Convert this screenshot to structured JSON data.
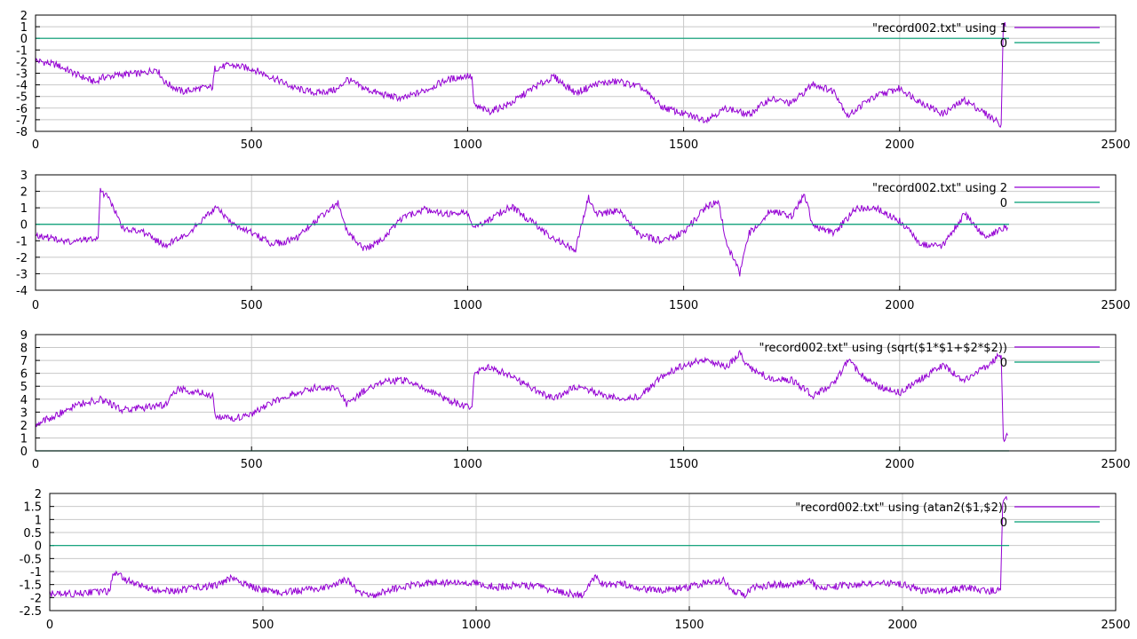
{
  "colors": {
    "data_series": "#9400d3",
    "zero_line": "#009e73",
    "grid": "#c8c8c8",
    "axis": "#000000",
    "background": "#ffffff"
  },
  "chart_data": [
    {
      "type": "line",
      "xlim": [
        0,
        2500
      ],
      "ylim": [
        -8,
        2
      ],
      "x_ticks": [
        0,
        500,
        1000,
        1500,
        2000,
        2500
      ],
      "y_ticks": [
        -8,
        -7,
        -6,
        -5,
        -4,
        -3,
        -2,
        -1,
        0,
        1,
        2
      ],
      "grid": true,
      "legend_position": "top-right",
      "series": [
        {
          "name": "\"record002.txt\" using 1",
          "kind": "data",
          "points": [
            [
              0,
              -1.9
            ],
            [
              50,
              -2.3
            ],
            [
              100,
              -3.2
            ],
            [
              140,
              -3.8
            ],
            [
              150,
              -3.4
            ],
            [
              200,
              -3.1
            ],
            [
              250,
              -3.0
            ],
            [
              280,
              -2.6
            ],
            [
              300,
              -3.8
            ],
            [
              340,
              -4.6
            ],
            [
              380,
              -4.3
            ],
            [
              410,
              -4.2
            ],
            [
              415,
              -2.6
            ],
            [
              450,
              -2.3
            ],
            [
              500,
              -2.6
            ],
            [
              550,
              -3.4
            ],
            [
              600,
              -4.3
            ],
            [
              650,
              -4.7
            ],
            [
              700,
              -4.4
            ],
            [
              720,
              -3.5
            ],
            [
              760,
              -4.3
            ],
            [
              800,
              -4.8
            ],
            [
              850,
              -5.2
            ],
            [
              900,
              -4.5
            ],
            [
              950,
              -3.6
            ],
            [
              1000,
              -3.2
            ],
            [
              1010,
              -3.4
            ],
            [
              1015,
              -5.8
            ],
            [
              1050,
              -6.3
            ],
            [
              1100,
              -5.6
            ],
            [
              1150,
              -4.3
            ],
            [
              1200,
              -3.3
            ],
            [
              1250,
              -4.7
            ],
            [
              1300,
              -3.9
            ],
            [
              1350,
              -3.7
            ],
            [
              1400,
              -4.2
            ],
            [
              1450,
              -5.9
            ],
            [
              1500,
              -6.5
            ],
            [
              1550,
              -7.0
            ],
            [
              1600,
              -6.0
            ],
            [
              1650,
              -6.6
            ],
            [
              1700,
              -5.2
            ],
            [
              1750,
              -5.6
            ],
            [
              1800,
              -3.9
            ],
            [
              1850,
              -4.6
            ],
            [
              1880,
              -6.7
            ],
            [
              1920,
              -5.5
            ],
            [
              1950,
              -4.9
            ],
            [
              2000,
              -4.3
            ],
            [
              2050,
              -5.5
            ],
            [
              2100,
              -6.5
            ],
            [
              2150,
              -5.3
            ],
            [
              2200,
              -6.5
            ],
            [
              2235,
              -7.4
            ],
            [
              2240,
              1.5
            ],
            [
              2245,
              1.0
            ]
          ]
        },
        {
          "name": "0",
          "kind": "constant",
          "value": 0
        }
      ]
    },
    {
      "type": "line",
      "xlim": [
        0,
        2500
      ],
      "ylim": [
        -4,
        3
      ],
      "x_ticks": [
        0,
        500,
        1000,
        1500,
        2000,
        2500
      ],
      "y_ticks": [
        -4,
        -3,
        -2,
        -1,
        0,
        1,
        2,
        3
      ],
      "grid": true,
      "legend_position": "top-right",
      "series": [
        {
          "name": "\"record002.txt\" using 2",
          "kind": "data",
          "points": [
            [
              0,
              -0.6
            ],
            [
              40,
              -0.9
            ],
            [
              80,
              -1.1
            ],
            [
              120,
              -0.9
            ],
            [
              145,
              -0.8
            ],
            [
              150,
              2.0
            ],
            [
              170,
              1.6
            ],
            [
              200,
              -0.2
            ],
            [
              250,
              -0.5
            ],
            [
              300,
              -1.3
            ],
            [
              350,
              -0.6
            ],
            [
              400,
              0.6
            ],
            [
              420,
              1.0
            ],
            [
              450,
              0.1
            ],
            [
              500,
              -0.5
            ],
            [
              550,
              -1.2
            ],
            [
              600,
              -0.9
            ],
            [
              650,
              0.2
            ],
            [
              700,
              1.3
            ],
            [
              720,
              -0.4
            ],
            [
              760,
              -1.5
            ],
            [
              800,
              -1.0
            ],
            [
              850,
              0.4
            ],
            [
              900,
              0.9
            ],
            [
              950,
              0.6
            ],
            [
              1000,
              0.7
            ],
            [
              1010,
              -0.2
            ],
            [
              1050,
              0.3
            ],
            [
              1100,
              1.1
            ],
            [
              1150,
              0.1
            ],
            [
              1200,
              -0.9
            ],
            [
              1250,
              -1.5
            ],
            [
              1280,
              1.6
            ],
            [
              1300,
              0.6
            ],
            [
              1350,
              0.8
            ],
            [
              1400,
              -0.7
            ],
            [
              1450,
              -1.0
            ],
            [
              1500,
              -0.5
            ],
            [
              1550,
              1.0
            ],
            [
              1580,
              1.4
            ],
            [
              1600,
              -1.2
            ],
            [
              1630,
              -3.0
            ],
            [
              1650,
              -0.6
            ],
            [
              1700,
              0.8
            ],
            [
              1750,
              0.5
            ],
            [
              1780,
              1.8
            ],
            [
              1800,
              -0.2
            ],
            [
              1850,
              -0.5
            ],
            [
              1900,
              1.0
            ],
            [
              1950,
              0.9
            ],
            [
              2000,
              0.2
            ],
            [
              2050,
              -1.2
            ],
            [
              2100,
              -1.3
            ],
            [
              2150,
              0.6
            ],
            [
              2200,
              -0.8
            ],
            [
              2240,
              -0.2
            ],
            [
              2250,
              -0.2
            ]
          ]
        },
        {
          "name": "0",
          "kind": "constant",
          "value": 0
        }
      ]
    },
    {
      "type": "line",
      "xlim": [
        0,
        2500
      ],
      "ylim": [
        0,
        9
      ],
      "x_ticks": [
        0,
        500,
        1000,
        1500,
        2000,
        2500
      ],
      "y_ticks": [
        0,
        1,
        2,
        3,
        4,
        5,
        6,
        7,
        8,
        9
      ],
      "grid": true,
      "legend_position": "top-right",
      "series": [
        {
          "name": "\"record002.txt\" using (sqrt($1*$1+$2*$2))",
          "kind": "data",
          "points": [
            [
              0,
              2.0
            ],
            [
              50,
              2.8
            ],
            [
              100,
              3.6
            ],
            [
              150,
              4.0
            ],
            [
              200,
              3.2
            ],
            [
              250,
              3.3
            ],
            [
              300,
              3.6
            ],
            [
              330,
              4.8
            ],
            [
              380,
              4.5
            ],
            [
              410,
              4.3
            ],
            [
              415,
              2.8
            ],
            [
              450,
              2.5
            ],
            [
              500,
              2.8
            ],
            [
              550,
              3.8
            ],
            [
              600,
              4.5
            ],
            [
              650,
              4.9
            ],
            [
              700,
              4.8
            ],
            [
              720,
              3.6
            ],
            [
              760,
              4.6
            ],
            [
              800,
              5.3
            ],
            [
              850,
              5.5
            ],
            [
              900,
              4.9
            ],
            [
              950,
              4.0
            ],
            [
              1000,
              3.4
            ],
            [
              1010,
              3.5
            ],
            [
              1015,
              6.0
            ],
            [
              1050,
              6.5
            ],
            [
              1100,
              5.8
            ],
            [
              1150,
              4.8
            ],
            [
              1200,
              4.0
            ],
            [
              1250,
              5.0
            ],
            [
              1300,
              4.5
            ],
            [
              1350,
              4.0
            ],
            [
              1400,
              4.2
            ],
            [
              1450,
              5.8
            ],
            [
              1500,
              6.6
            ],
            [
              1550,
              7.1
            ],
            [
              1600,
              6.5
            ],
            [
              1630,
              7.5
            ],
            [
              1650,
              6.5
            ],
            [
              1700,
              5.6
            ],
            [
              1750,
              5.5
            ],
            [
              1800,
              4.3
            ],
            [
              1850,
              5.2
            ],
            [
              1880,
              7.0
            ],
            [
              1920,
              5.6
            ],
            [
              1950,
              5.0
            ],
            [
              2000,
              4.5
            ],
            [
              2050,
              5.6
            ],
            [
              2100,
              6.6
            ],
            [
              2150,
              5.4
            ],
            [
              2200,
              6.5
            ],
            [
              2230,
              7.4
            ],
            [
              2235,
              7.4
            ],
            [
              2240,
              0.9
            ],
            [
              2250,
              1.2
            ]
          ]
        },
        {
          "name": "0",
          "kind": "constant",
          "value": 0
        }
      ]
    },
    {
      "type": "line",
      "xlim": [
        0,
        2500
      ],
      "ylim": [
        -2.5,
        2
      ],
      "x_ticks": [
        0,
        500,
        1000,
        1500,
        2000,
        2500
      ],
      "y_ticks": [
        -2.5,
        -2,
        -1.5,
        -1,
        -0.5,
        0,
        0.5,
        1,
        1.5,
        2
      ],
      "grid": true,
      "legend_position": "top-right",
      "series": [
        {
          "name": "\"record002.txt\" using (atan2($1,$2))",
          "kind": "data",
          "points": [
            [
              0,
              -1.85
            ],
            [
              50,
              -1.85
            ],
            [
              100,
              -1.8
            ],
            [
              140,
              -1.75
            ],
            [
              150,
              -1.05
            ],
            [
              200,
              -1.5
            ],
            [
              250,
              -1.7
            ],
            [
              300,
              -1.75
            ],
            [
              350,
              -1.6
            ],
            [
              400,
              -1.5
            ],
            [
              430,
              -1.2
            ],
            [
              450,
              -1.45
            ],
            [
              500,
              -1.7
            ],
            [
              550,
              -1.8
            ],
            [
              600,
              -1.7
            ],
            [
              650,
              -1.6
            ],
            [
              700,
              -1.3
            ],
            [
              720,
              -1.75
            ],
            [
              760,
              -1.9
            ],
            [
              800,
              -1.7
            ],
            [
              850,
              -1.5
            ],
            [
              900,
              -1.4
            ],
            [
              950,
              -1.45
            ],
            [
              1000,
              -1.4
            ],
            [
              1010,
              -1.5
            ],
            [
              1050,
              -1.6
            ],
            [
              1100,
              -1.5
            ],
            [
              1150,
              -1.6
            ],
            [
              1200,
              -1.8
            ],
            [
              1250,
              -1.9
            ],
            [
              1280,
              -1.2
            ],
            [
              1300,
              -1.5
            ],
            [
              1350,
              -1.5
            ],
            [
              1400,
              -1.7
            ],
            [
              1450,
              -1.7
            ],
            [
              1500,
              -1.6
            ],
            [
              1550,
              -1.4
            ],
            [
              1580,
              -1.35
            ],
            [
              1600,
              -1.75
            ],
            [
              1630,
              -1.9
            ],
            [
              1650,
              -1.6
            ],
            [
              1700,
              -1.5
            ],
            [
              1750,
              -1.5
            ],
            [
              1780,
              -1.3
            ],
            [
              1800,
              -1.6
            ],
            [
              1850,
              -1.55
            ],
            [
              1900,
              -1.5
            ],
            [
              1950,
              -1.45
            ],
            [
              2000,
              -1.5
            ],
            [
              2050,
              -1.75
            ],
            [
              2100,
              -1.75
            ],
            [
              2150,
              -1.6
            ],
            [
              2200,
              -1.75
            ],
            [
              2230,
              -1.7
            ],
            [
              2235,
              1.7
            ],
            [
              2240,
              1.85
            ],
            [
              2245,
              1.75
            ]
          ]
        },
        {
          "name": "0",
          "kind": "constant",
          "value": 0
        }
      ]
    }
  ]
}
